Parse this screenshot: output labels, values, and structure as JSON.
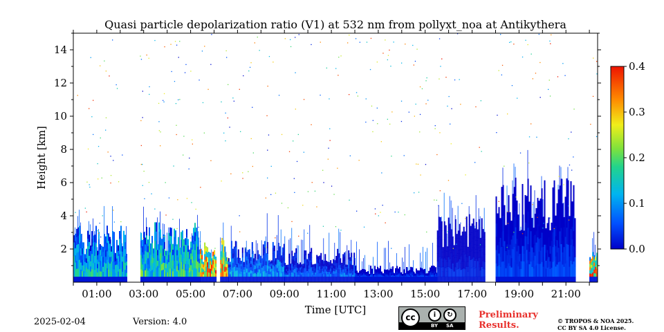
{
  "chart_data": {
    "type": "heatmap",
    "title": "Quasi particle depolarization ratio (V1) at 532 nm from pollyxt_noa at Antikythera",
    "xlabel": "Time [UTC]",
    "ylabel": "Height [km]",
    "x_ticks": [
      "01:00",
      "03:00",
      "05:00",
      "07:00",
      "09:00",
      "11:00",
      "13:00",
      "15:00",
      "17:00",
      "19:00",
      "21:00"
    ],
    "y_ticks": [
      "2",
      "4",
      "6",
      "8",
      "10",
      "12",
      "14"
    ],
    "xlim": [
      0.0,
      22.35
    ],
    "ylim": [
      0.0,
      15.0
    ],
    "colorbar": {
      "ticks": [
        "0.0",
        "0.1",
        "0.2",
        "0.3",
        "0.4"
      ],
      "range": [
        0.0,
        0.4
      ],
      "colormap": "jet"
    },
    "gaps_utc": [
      [
        2.25,
        2.8
      ],
      [
        6.05,
        6.2
      ],
      [
        17.55,
        18.0
      ],
      [
        21.4,
        22.0
      ]
    ],
    "layers": [
      {
        "start": 0.0,
        "end": 2.25,
        "top_km": 3.0,
        "value": 0.14
      },
      {
        "start": 2.8,
        "end": 5.4,
        "top_km": 3.2,
        "value": 0.17
      },
      {
        "start": 5.4,
        "end": 6.05,
        "top_km": 2.2,
        "value": 0.33
      },
      {
        "start": 6.2,
        "end": 6.6,
        "top_km": 2.4,
        "value": 0.3
      },
      {
        "start": 6.6,
        "end": 9.0,
        "top_km": 2.2,
        "value": 0.1
      },
      {
        "start": 9.0,
        "end": 12.0,
        "top_km": 1.8,
        "value": 0.07
      },
      {
        "start": 12.0,
        "end": 15.5,
        "top_km": 0.9,
        "value": 0.04
      },
      {
        "start": 15.5,
        "end": 17.55,
        "top_km": 3.6,
        "value": 0.03
      },
      {
        "start": 18.0,
        "end": 21.4,
        "top_km": 5.5,
        "value": 0.05
      },
      {
        "start": 22.0,
        "end": 22.35,
        "top_km": 2.5,
        "value": 0.3
      }
    ]
  },
  "footer": {
    "date": "2025-02-04",
    "version": "Version: 4.0",
    "preliminary_line1": "Preliminary",
    "preliminary_line2": "Results.",
    "copyright_line1": "© TROPOS & NOA 2025.",
    "copyright_line2": "CC BY SA 4.0 License.",
    "cc_badge": {
      "cc": "cc",
      "by": "BY",
      "sa": "SA"
    }
  },
  "colors": {
    "accent_text": "#e8302c"
  }
}
